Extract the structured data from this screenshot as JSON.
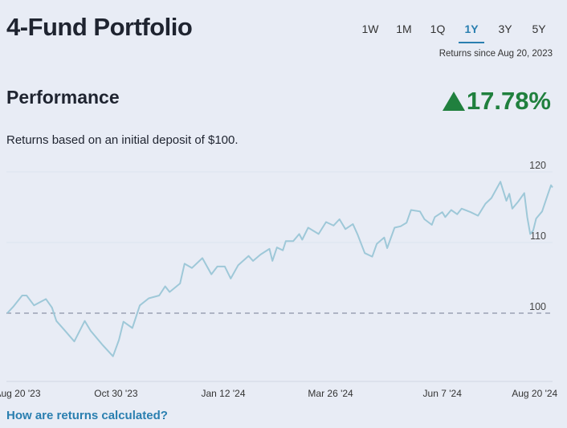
{
  "header": {
    "title": "4-Fund Portfolio"
  },
  "tabs": [
    {
      "label": "1W"
    },
    {
      "label": "1M"
    },
    {
      "label": "1Q"
    },
    {
      "label": "1Y",
      "active": true
    },
    {
      "label": "3Y"
    },
    {
      "label": "5Y"
    }
  ],
  "returns_since": "Returns since Aug 20, 2023",
  "performance": {
    "heading": "Performance",
    "change": "17.78%",
    "direction": "up",
    "color": "#20803e"
  },
  "subtitle": "Returns based on an initial deposit of $100.",
  "link": "How are returns calculated?",
  "chart_data": {
    "type": "line",
    "line_color": "#9ec8d8",
    "baseline": 100,
    "ylim": [
      92,
      122
    ],
    "xlim": [
      "2023-08-20",
      "2024-08-20"
    ],
    "y_ticks": [
      {
        "value": 120,
        "label": "120"
      },
      {
        "value": 110,
        "label": "110"
      },
      {
        "value": 100,
        "label": "100"
      }
    ],
    "x_ticks": [
      {
        "date": "2023-08-27",
        "label": "Aug 20 '23"
      },
      {
        "date": "2023-11-01",
        "label": "Oct 30 '23"
      },
      {
        "date": "2024-01-12",
        "label": "Jan 12 '24"
      },
      {
        "date": "2024-03-24",
        "label": "Mar 26 '24"
      },
      {
        "date": "2024-06-07",
        "label": "Jun 7 '24"
      },
      {
        "date": "2024-08-08",
        "label": "Aug 20 '24"
      }
    ],
    "points": [
      [
        "2023-08-20",
        100.0
      ],
      [
        "2023-08-24",
        100.9
      ],
      [
        "2023-08-30",
        102.5
      ],
      [
        "2023-09-02",
        102.5
      ],
      [
        "2023-09-07",
        101.1
      ],
      [
        "2023-09-15",
        102.0
      ],
      [
        "2023-09-19",
        100.8
      ],
      [
        "2023-09-22",
        98.9
      ],
      [
        "2023-09-27",
        97.7
      ],
      [
        "2023-10-04",
        96.0
      ],
      [
        "2023-10-11",
        98.9
      ],
      [
        "2023-10-15",
        97.5
      ],
      [
        "2023-10-23",
        95.5
      ],
      [
        "2023-10-30",
        93.9
      ],
      [
        "2023-11-03",
        96.2
      ],
      [
        "2023-11-06",
        98.8
      ],
      [
        "2023-11-12",
        97.9
      ],
      [
        "2023-11-17",
        101.1
      ],
      [
        "2023-11-23",
        102.1
      ],
      [
        "2023-11-30",
        102.5
      ],
      [
        "2023-12-04",
        103.8
      ],
      [
        "2023-12-07",
        103.0
      ],
      [
        "2023-12-14",
        104.2
      ],
      [
        "2023-12-17",
        107.0
      ],
      [
        "2023-12-22",
        106.4
      ],
      [
        "2023-12-29",
        107.8
      ],
      [
        "2024-01-04",
        105.5
      ],
      [
        "2024-01-08",
        106.6
      ],
      [
        "2024-01-13",
        106.6
      ],
      [
        "2024-01-17",
        104.9
      ],
      [
        "2024-01-22",
        106.8
      ],
      [
        "2024-01-29",
        108.1
      ],
      [
        "2024-02-01",
        107.4
      ],
      [
        "2024-02-06",
        108.3
      ],
      [
        "2024-02-12",
        109.1
      ],
      [
        "2024-02-14",
        107.4
      ],
      [
        "2024-02-17",
        109.3
      ],
      [
        "2024-02-21",
        108.9
      ],
      [
        "2024-02-23",
        110.2
      ],
      [
        "2024-02-28",
        110.2
      ],
      [
        "2024-03-03",
        111.2
      ],
      [
        "2024-03-05",
        110.4
      ],
      [
        "2024-03-09",
        112.1
      ],
      [
        "2024-03-16",
        111.2
      ],
      [
        "2024-03-21",
        112.9
      ],
      [
        "2024-03-26",
        112.4
      ],
      [
        "2024-03-30",
        113.3
      ],
      [
        "2024-04-03",
        111.9
      ],
      [
        "2024-04-08",
        112.6
      ],
      [
        "2024-04-11",
        111.2
      ],
      [
        "2024-04-16",
        108.5
      ],
      [
        "2024-04-21",
        108.0
      ],
      [
        "2024-04-24",
        109.8
      ],
      [
        "2024-04-29",
        110.7
      ],
      [
        "2024-05-01",
        109.2
      ],
      [
        "2024-05-06",
        112.1
      ],
      [
        "2024-05-10",
        112.3
      ],
      [
        "2024-05-14",
        112.8
      ],
      [
        "2024-05-17",
        114.6
      ],
      [
        "2024-05-23",
        114.4
      ],
      [
        "2024-05-26",
        113.3
      ],
      [
        "2024-05-31",
        112.5
      ],
      [
        "2024-06-02",
        113.6
      ],
      [
        "2024-06-07",
        114.3
      ],
      [
        "2024-06-09",
        113.6
      ],
      [
        "2024-06-13",
        114.6
      ],
      [
        "2024-06-17",
        114.0
      ],
      [
        "2024-06-20",
        114.8
      ],
      [
        "2024-06-26",
        114.3
      ],
      [
        "2024-07-01",
        113.8
      ],
      [
        "2024-07-06",
        115.5
      ],
      [
        "2024-07-10",
        116.3
      ],
      [
        "2024-07-16",
        118.6
      ],
      [
        "2024-07-20",
        115.9
      ],
      [
        "2024-07-22",
        116.9
      ],
      [
        "2024-07-24",
        114.8
      ],
      [
        "2024-07-28",
        115.8
      ],
      [
        "2024-08-01",
        117.0
      ],
      [
        "2024-08-03",
        113.6
      ],
      [
        "2024-08-05",
        111.2
      ],
      [
        "2024-08-07",
        111.7
      ],
      [
        "2024-08-09",
        113.4
      ],
      [
        "2024-08-13",
        114.4
      ],
      [
        "2024-08-17",
        116.9
      ],
      [
        "2024-08-19",
        118.1
      ],
      [
        "2024-08-20",
        117.8
      ]
    ]
  }
}
